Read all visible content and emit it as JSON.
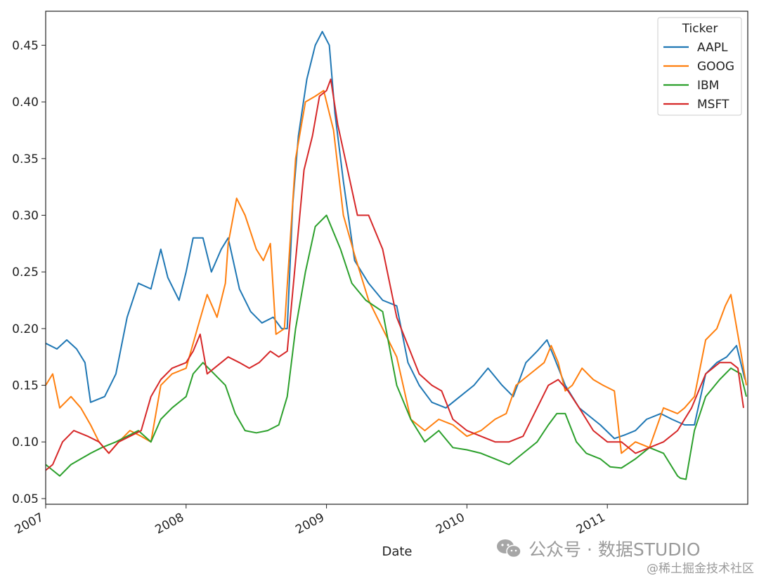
{
  "chart_data": {
    "type": "line",
    "title": "",
    "xlabel": "Date",
    "ylabel": "",
    "legend_title": "Ticker",
    "legend_position": "top-right",
    "grid": false,
    "xlim": [
      2007.0,
      2012.0
    ],
    "ylim": [
      0.045,
      0.48
    ],
    "y_ticks": [
      0.05,
      0.1,
      0.15,
      0.2,
      0.25,
      0.3,
      0.35,
      0.4,
      0.45
    ],
    "y_tick_labels": [
      "0.05",
      "0.10",
      "0.15",
      "0.20",
      "0.25",
      "0.30",
      "0.35",
      "0.40",
      "0.45"
    ],
    "x_ticks": [
      2007,
      2008,
      2009,
      2010,
      2011
    ],
    "x_tick_labels": [
      "2007",
      "2008",
      "2009",
      "2010",
      "2011"
    ],
    "series": [
      {
        "name": "AAPL",
        "color": "#1f77b4",
        "x": [
          2007.0,
          2007.08,
          2007.15,
          2007.22,
          2007.28,
          2007.32,
          2007.42,
          2007.5,
          2007.58,
          2007.66,
          2007.75,
          2007.82,
          2007.87,
          2007.95,
          2008.0,
          2008.05,
          2008.12,
          2008.18,
          2008.25,
          2008.3,
          2008.38,
          2008.46,
          2008.54,
          2008.62,
          2008.68,
          2008.72,
          2008.76,
          2008.8,
          2008.86,
          2008.92,
          2008.97,
          2009.02,
          2009.06,
          2009.12,
          2009.2,
          2009.3,
          2009.4,
          2009.5,
          2009.58,
          2009.66,
          2009.75,
          2009.85,
          2009.95,
          2010.05,
          2010.15,
          2010.25,
          2010.33,
          2010.42,
          2010.5,
          2010.57,
          2010.62,
          2010.7,
          2010.8,
          2010.9,
          2010.95,
          2011.05,
          2011.12,
          2011.2,
          2011.28,
          2011.38,
          2011.46,
          2011.55,
          2011.62,
          2011.7,
          2011.78,
          2011.85,
          2011.92,
          2011.98
        ],
        "y": [
          0.187,
          0.182,
          0.19,
          0.182,
          0.17,
          0.135,
          0.14,
          0.16,
          0.21,
          0.24,
          0.235,
          0.27,
          0.245,
          0.225,
          0.25,
          0.28,
          0.28,
          0.25,
          0.27,
          0.28,
          0.235,
          0.215,
          0.205,
          0.21,
          0.2,
          0.2,
          0.31,
          0.37,
          0.42,
          0.45,
          0.462,
          0.45,
          0.39,
          0.33,
          0.26,
          0.24,
          0.225,
          0.22,
          0.17,
          0.15,
          0.135,
          0.13,
          0.14,
          0.15,
          0.165,
          0.15,
          0.14,
          0.17,
          0.18,
          0.19,
          0.175,
          0.15,
          0.13,
          0.12,
          0.115,
          0.103,
          0.106,
          0.11,
          0.12,
          0.125,
          0.12,
          0.115,
          0.115,
          0.16,
          0.17,
          0.175,
          0.185,
          0.155
        ]
      },
      {
        "name": "GOOG",
        "color": "#ff7f0e",
        "x": [
          2007.0,
          2007.05,
          2007.1,
          2007.18,
          2007.25,
          2007.32,
          2007.38,
          2007.45,
          2007.52,
          2007.6,
          2007.68,
          2007.75,
          2007.82,
          2007.9,
          2008.0,
          2008.08,
          2008.15,
          2008.22,
          2008.28,
          2008.3,
          2008.36,
          2008.42,
          2008.5,
          2008.55,
          2008.6,
          2008.64,
          2008.7,
          2008.78,
          2008.85,
          2008.92,
          2008.98,
          2009.05,
          2009.12,
          2009.2,
          2009.3,
          2009.4,
          2009.5,
          2009.6,
          2009.7,
          2009.8,
          2009.9,
          2010.0,
          2010.1,
          2010.2,
          2010.28,
          2010.35,
          2010.45,
          2010.55,
          2010.6,
          2010.65,
          2010.7,
          2010.75,
          2010.82,
          2010.9,
          2010.97,
          2011.05,
          2011.1,
          2011.2,
          2011.3,
          2011.4,
          2011.5,
          2011.55,
          2011.62,
          2011.7,
          2011.78,
          2011.84,
          2011.88,
          2011.95,
          2011.99
        ],
        "y": [
          0.15,
          0.16,
          0.13,
          0.14,
          0.13,
          0.115,
          0.1,
          0.09,
          0.1,
          0.11,
          0.105,
          0.1,
          0.15,
          0.16,
          0.165,
          0.2,
          0.23,
          0.21,
          0.24,
          0.275,
          0.315,
          0.3,
          0.27,
          0.26,
          0.275,
          0.195,
          0.2,
          0.35,
          0.4,
          0.405,
          0.41,
          0.375,
          0.3,
          0.265,
          0.225,
          0.2,
          0.175,
          0.12,
          0.11,
          0.12,
          0.115,
          0.105,
          0.11,
          0.12,
          0.125,
          0.15,
          0.16,
          0.17,
          0.185,
          0.17,
          0.145,
          0.15,
          0.165,
          0.155,
          0.15,
          0.145,
          0.09,
          0.1,
          0.095,
          0.13,
          0.125,
          0.13,
          0.14,
          0.19,
          0.2,
          0.22,
          0.23,
          0.18,
          0.15
        ]
      },
      {
        "name": "IBM",
        "color": "#2ca02c",
        "x": [
          2007.0,
          2007.05,
          2007.1,
          2007.18,
          2007.25,
          2007.32,
          2007.4,
          2007.5,
          2007.58,
          2007.66,
          2007.75,
          2007.82,
          2007.9,
          2008.0,
          2008.05,
          2008.12,
          2008.2,
          2008.28,
          2008.35,
          2008.42,
          2008.5,
          2008.58,
          2008.66,
          2008.72,
          2008.78,
          2008.85,
          2008.92,
          2009.0,
          2009.05,
          2009.1,
          2009.18,
          2009.28,
          2009.4,
          2009.5,
          2009.6,
          2009.7,
          2009.8,
          2009.9,
          2010.0,
          2010.1,
          2010.2,
          2010.3,
          2010.4,
          2010.5,
          2010.58,
          2010.64,
          2010.7,
          2010.78,
          2010.85,
          2010.95,
          2011.02,
          2011.1,
          2011.2,
          2011.3,
          2011.4,
          2011.5,
          2011.52,
          2011.56,
          2011.62,
          2011.7,
          2011.8,
          2011.88,
          2011.95,
          2011.99
        ],
        "y": [
          0.08,
          0.075,
          0.07,
          0.08,
          0.085,
          0.09,
          0.095,
          0.1,
          0.105,
          0.11,
          0.1,
          0.12,
          0.13,
          0.14,
          0.16,
          0.17,
          0.16,
          0.15,
          0.125,
          0.11,
          0.108,
          0.11,
          0.115,
          0.14,
          0.2,
          0.25,
          0.29,
          0.3,
          0.285,
          0.27,
          0.24,
          0.225,
          0.215,
          0.15,
          0.12,
          0.1,
          0.11,
          0.095,
          0.093,
          0.09,
          0.085,
          0.08,
          0.09,
          0.1,
          0.115,
          0.125,
          0.125,
          0.1,
          0.09,
          0.085,
          0.078,
          0.077,
          0.085,
          0.095,
          0.09,
          0.07,
          0.068,
          0.067,
          0.11,
          0.14,
          0.155,
          0.165,
          0.16,
          0.14
        ]
      },
      {
        "name": "MSFT",
        "color": "#d62728",
        "x": [
          2007.0,
          2007.05,
          2007.12,
          2007.2,
          2007.3,
          2007.38,
          2007.45,
          2007.52,
          2007.6,
          2007.68,
          2007.75,
          2007.82,
          2007.9,
          2008.0,
          2008.05,
          2008.1,
          2008.15,
          2008.2,
          2008.3,
          2008.38,
          2008.45,
          2008.52,
          2008.6,
          2008.66,
          2008.72,
          2008.78,
          2008.84,
          2008.9,
          2008.95,
          2009.0,
          2009.03,
          2009.08,
          2009.15,
          2009.22,
          2009.3,
          2009.4,
          2009.45,
          2009.5,
          2009.58,
          2009.66,
          2009.75,
          2009.82,
          2009.9,
          2010.0,
          2010.1,
          2010.2,
          2010.3,
          2010.4,
          2010.5,
          2010.58,
          2010.65,
          2010.72,
          2010.8,
          2010.9,
          2011.0,
          2011.1,
          2011.2,
          2011.3,
          2011.4,
          2011.5,
          2011.6,
          2011.7,
          2011.8,
          2011.88,
          2011.93,
          2011.97
        ],
        "y": [
          0.075,
          0.08,
          0.1,
          0.11,
          0.105,
          0.1,
          0.09,
          0.1,
          0.105,
          0.11,
          0.14,
          0.155,
          0.165,
          0.17,
          0.18,
          0.195,
          0.16,
          0.165,
          0.175,
          0.17,
          0.165,
          0.17,
          0.18,
          0.175,
          0.18,
          0.26,
          0.34,
          0.37,
          0.405,
          0.41,
          0.42,
          0.38,
          0.34,
          0.3,
          0.3,
          0.27,
          0.24,
          0.21,
          0.185,
          0.16,
          0.15,
          0.145,
          0.12,
          0.11,
          0.105,
          0.1,
          0.1,
          0.105,
          0.13,
          0.15,
          0.155,
          0.145,
          0.13,
          0.11,
          0.1,
          0.1,
          0.09,
          0.095,
          0.1,
          0.11,
          0.13,
          0.16,
          0.17,
          0.17,
          0.165,
          0.13
        ]
      }
    ]
  },
  "watermark": {
    "channel_prefix": "公众号 · ",
    "channel_name": "数据STUDIO",
    "community": "@稀土掘金技术社区"
  }
}
